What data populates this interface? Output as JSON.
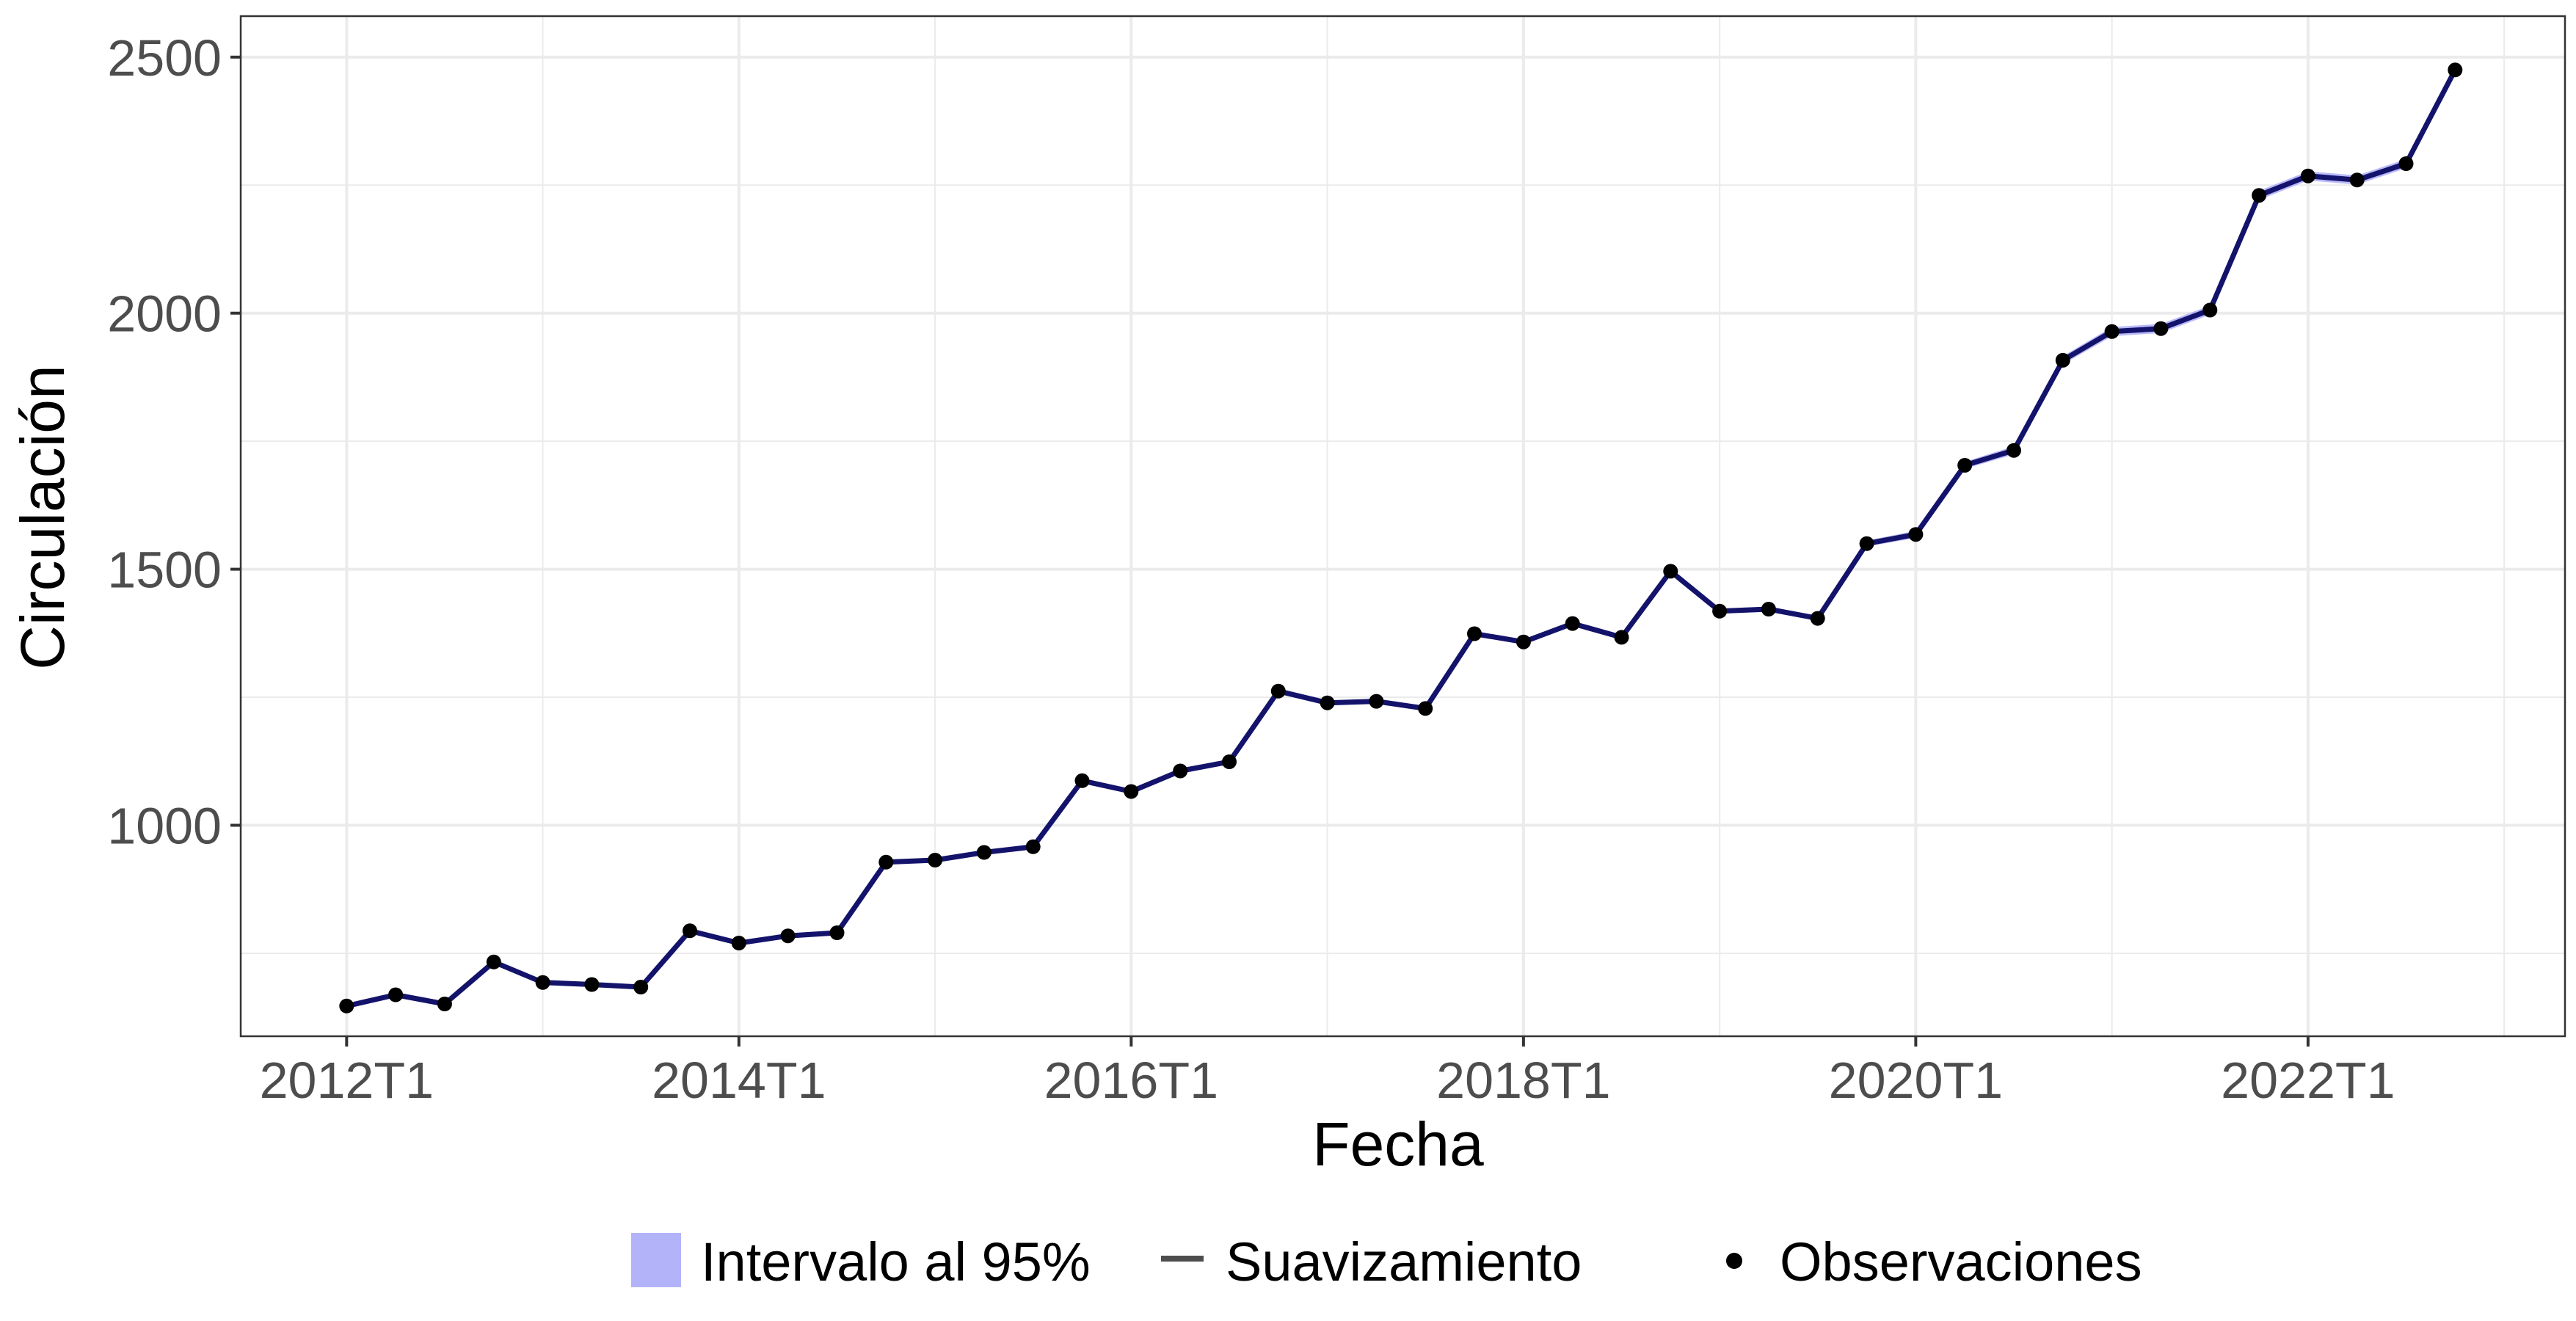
{
  "chart_data": {
    "type": "line",
    "title": "",
    "xlabel": "Fecha",
    "ylabel": "Circulación",
    "x_tick_labels": [
      "2012T1",
      "2014T1",
      "2016T1",
      "2018T1",
      "2020T1",
      "2022T1"
    ],
    "y_ticks": [
      1000,
      1500,
      2000,
      2500
    ],
    "xlim": [
      2011.46,
      2023.31
    ],
    "ylim": [
      588,
      2580
    ],
    "grid": true,
    "legend_position": "bottom",
    "legend": {
      "interval_label": "Intervalo al 95%",
      "smooth_label": "Suavizamiento",
      "obs_label": "Observaciones"
    },
    "colors": {
      "line": "#13136b",
      "band": "#b3b3fa",
      "points": "#000000",
      "grid": "#ebebeb",
      "panel_border": "#333333",
      "tick_text": "#4d4d4d"
    },
    "series": [
      {
        "name": "Observaciones",
        "x": [
          "2012T1",
          "2012T2",
          "2012T3",
          "2012T4",
          "2013T1",
          "2013T2",
          "2013T3",
          "2013T4",
          "2014T1",
          "2014T2",
          "2014T3",
          "2014T4",
          "2015T1",
          "2015T2",
          "2015T3",
          "2015T4",
          "2016T1",
          "2016T2",
          "2016T3",
          "2016T4",
          "2017T1",
          "2017T2",
          "2017T3",
          "2017T4",
          "2018T1",
          "2018T2",
          "2018T3",
          "2018T4",
          "2019T1",
          "2019T2",
          "2019T3",
          "2019T4",
          "2020T1",
          "2020T2",
          "2020T3",
          "2020T4",
          "2021T1",
          "2021T2",
          "2021T3",
          "2021T4",
          "2022T1",
          "2022T2",
          "2022T3",
          "2022T4"
        ],
        "values": [
          647,
          669,
          651,
          733,
          693,
          689,
          684,
          794,
          770,
          784,
          790,
          928,
          932,
          947,
          958,
          1087,
          1066,
          1106,
          1124,
          1262,
          1239,
          1242,
          1228,
          1374,
          1358,
          1394,
          1367,
          1496,
          1418,
          1422,
          1404,
          1550,
          1568,
          1703,
          1732,
          1908,
          1964,
          1970,
          2006,
          2230,
          2268,
          2260,
          2292,
          2475
        ]
      },
      {
        "name": "Suavizamiento",
        "x": [
          "2012T1",
          "2012T2",
          "2012T3",
          "2012T4",
          "2013T1",
          "2013T2",
          "2013T3",
          "2013T4",
          "2014T1",
          "2014T2",
          "2014T3",
          "2014T4",
          "2015T1",
          "2015T2",
          "2015T3",
          "2015T4",
          "2016T1",
          "2016T2",
          "2016T3",
          "2016T4",
          "2017T1",
          "2017T2",
          "2017T3",
          "2017T4",
          "2018T1",
          "2018T2",
          "2018T3",
          "2018T4",
          "2019T1",
          "2019T2",
          "2019T3",
          "2019T4",
          "2020T1",
          "2020T2",
          "2020T3",
          "2020T4",
          "2021T1",
          "2021T2",
          "2021T3",
          "2021T4",
          "2022T1",
          "2022T2",
          "2022T3",
          "2022T4"
        ],
        "values": [
          647,
          669,
          651,
          733,
          693,
          689,
          684,
          794,
          770,
          784,
          790,
          928,
          932,
          947,
          958,
          1087,
          1066,
          1106,
          1124,
          1262,
          1239,
          1242,
          1228,
          1374,
          1358,
          1394,
          1367,
          1496,
          1418,
          1422,
          1404,
          1550,
          1568,
          1703,
          1732,
          1908,
          1964,
          1970,
          2006,
          2230,
          2268,
          2260,
          2292,
          2475
        ]
      }
    ],
    "interval_95": {
      "lower": [
        646,
        668,
        650,
        732,
        692,
        688,
        683,
        793,
        769,
        783,
        789,
        927,
        931,
        946,
        957,
        1085,
        1064,
        1104,
        1122,
        1259,
        1236,
        1239,
        1225,
        1370,
        1354,
        1390,
        1363,
        1491,
        1413,
        1417,
        1399,
        1544,
        1561,
        1696,
        1724,
        1900,
        1955,
        1961,
        1997,
        2221,
        2259,
        2251,
        2283,
        2475
      ],
      "upper": [
        648,
        670,
        652,
        734,
        694,
        690,
        685,
        795,
        771,
        785,
        791,
        929,
        933,
        948,
        959,
        1089,
        1068,
        1108,
        1126,
        1265,
        1242,
        1245,
        1231,
        1378,
        1362,
        1398,
        1371,
        1501,
        1423,
        1427,
        1409,
        1556,
        1575,
        1710,
        1740,
        1916,
        1973,
        1979,
        2015,
        2239,
        2277,
        2269,
        2301,
        2475
      ]
    }
  }
}
